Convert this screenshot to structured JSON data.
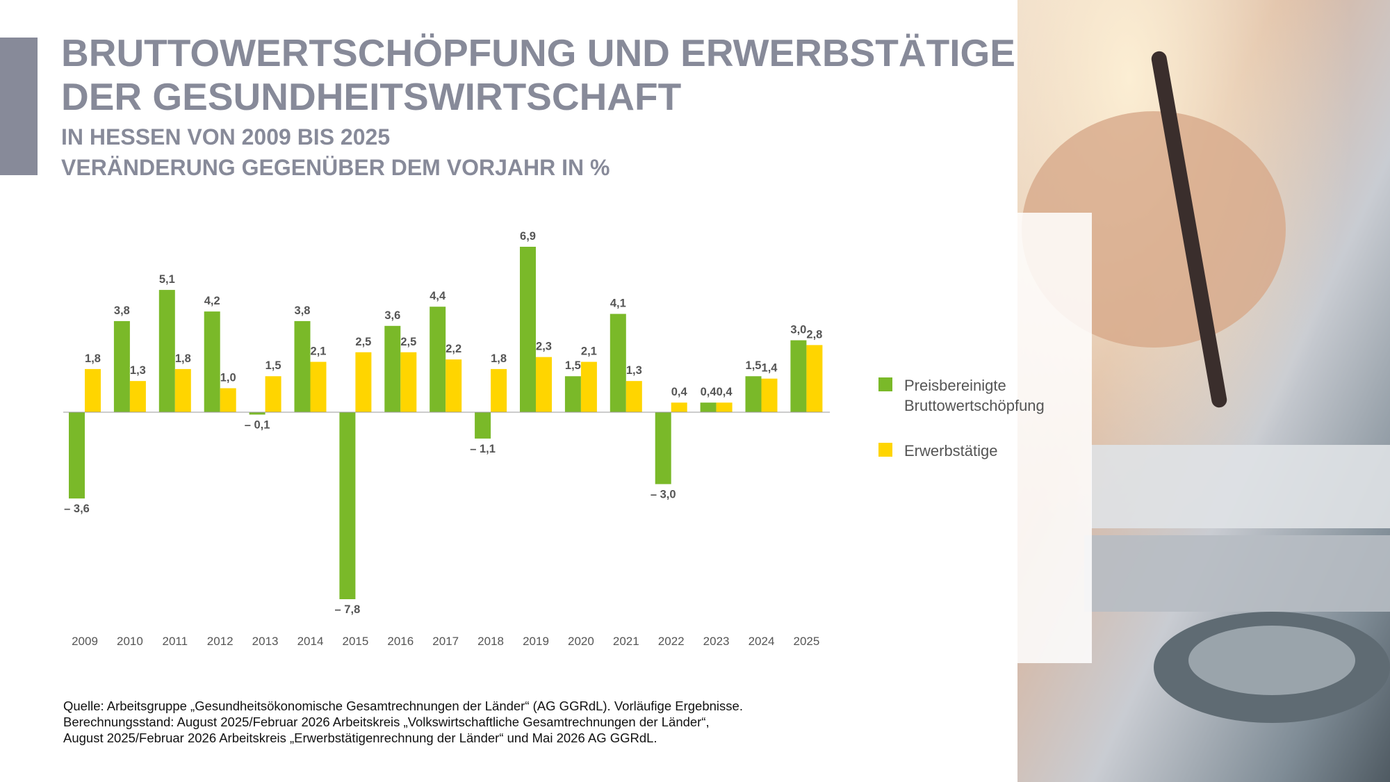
{
  "chart_data": {
    "type": "bar",
    "title": [
      "BRUTTOWERTSCHÖPFUNG UND ERWERBSTÄTIGE",
      "DER GESUNDHEITSWIRTSCHAFT"
    ],
    "subtitle": [
      "IN HESSEN VON 2009 BIS 2025",
      "VERÄNDERUNG GEGENÜBER DEM VORJAHR IN %"
    ],
    "categories": [
      "2009",
      "2010",
      "2011",
      "2012",
      "2013",
      "2014",
      "2015",
      "2016",
      "2017",
      "2018",
      "2019",
      "2020",
      "2021",
      "2022",
      "2023",
      "2024",
      "2025"
    ],
    "series": [
      {
        "name": "Preisbereinigte Bruttowertschöpfung",
        "color": "#7ab929",
        "values": [
          -3.6,
          3.8,
          5.1,
          4.2,
          -0.1,
          3.8,
          -7.8,
          3.6,
          4.4,
          -1.1,
          6.9,
          1.5,
          4.1,
          -3.0,
          0.4,
          1.5,
          3.0
        ],
        "value_labels": [
          "– 3,6",
          "3,8",
          "5,1",
          "4,2",
          "– 0,1",
          "3,8",
          "– 7,8",
          "3,6",
          "4,4",
          "– 1,1",
          "6,9",
          "1,5",
          "4,1",
          "– 3,0",
          "0,4",
          "1,5",
          "3,0"
        ]
      },
      {
        "name": "Erwerbstätige",
        "color": "#ffd500",
        "values": [
          1.8,
          1.3,
          1.8,
          1.0,
          1.5,
          2.1,
          2.5,
          2.5,
          2.2,
          1.8,
          2.3,
          2.1,
          1.3,
          0.4,
          0.4,
          1.4,
          2.8
        ],
        "value_labels": [
          "1,8",
          "1,3",
          "1,8",
          "1,0",
          "1,5",
          "2,1",
          "2,5",
          "2,5",
          "2,2",
          "1,8",
          "2,3",
          "2,1",
          "1,3",
          "0,4",
          "0,4",
          "1,4",
          "2,8"
        ]
      }
    ],
    "source": [
      "Quelle: Arbeitsgruppe „Gesundheitsökonomische Gesamtrechnungen der Länder“ (AG GGRdL). Vorläufige Ergebnisse.",
      "Berechnungsstand: August 2025/Februar 2026 Arbeitskreis „Volkswirtschaftliche Gesamtrechnungen der Länder“,",
      "August 2025/Februar 2026 Arbeitskreis „Erwerbstätigenrechnung der Länder“ und Mai 2026 AG GGRdL."
    ]
  }
}
